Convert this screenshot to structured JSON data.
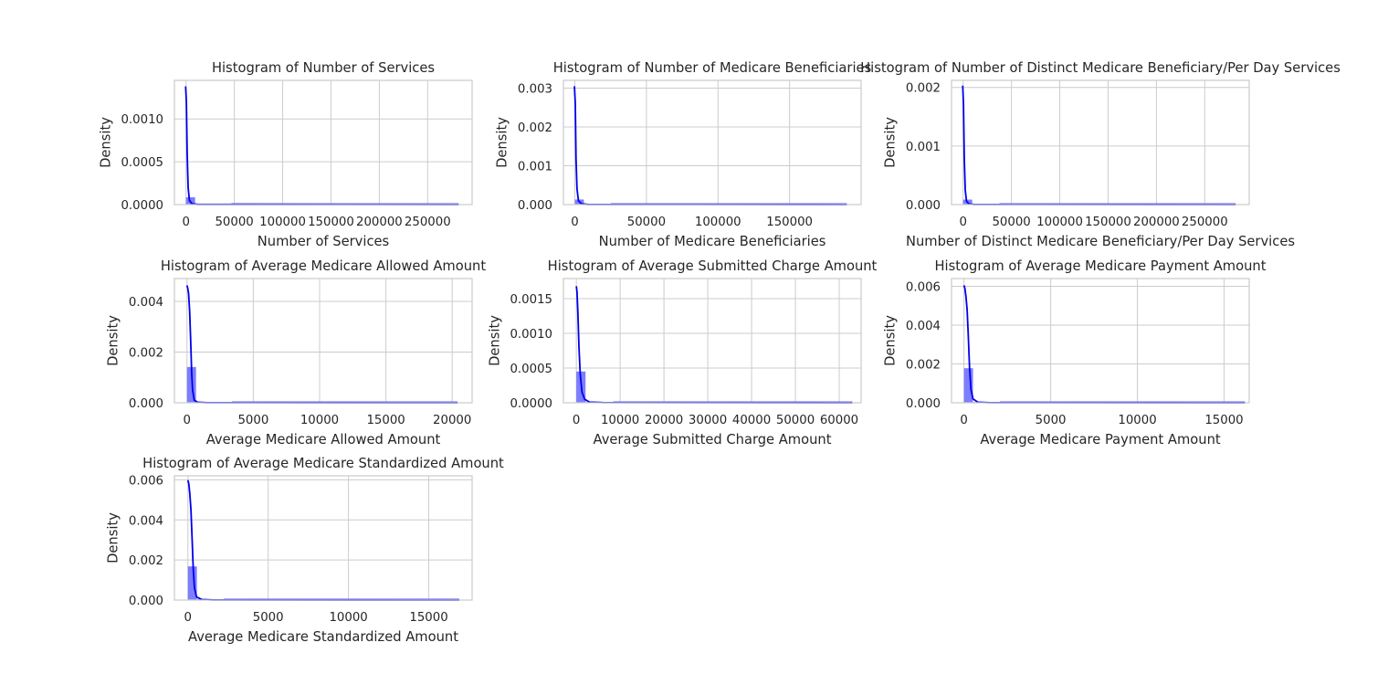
{
  "chart_data": [
    {
      "type": "bar",
      "title": "Histogram of Number of Services",
      "xlabel": "Number of Services",
      "ylabel": "Density",
      "xlim": [
        -12000,
        296000
      ],
      "ylim": [
        0,
        0.00145
      ],
      "xticks": [
        0,
        50000,
        100000,
        150000,
        200000,
        250000
      ],
      "xtick_labels": [
        "0",
        "50000",
        "100000",
        "150000",
        "200000",
        "250000"
      ],
      "yticks": [
        0,
        0.0005,
        0.001
      ],
      "ytick_labels": [
        "0.0000",
        "0.0005",
        "0.0010"
      ],
      "bin_width": 9400,
      "bins": [
        {
          "x0": 0,
          "density": 8.5e-05
        },
        {
          "x0": 9400,
          "density": 2.5e-06
        },
        {
          "x0": 18800,
          "density": 1.2e-06
        },
        {
          "x0": 28200,
          "density": 6e-07
        },
        {
          "x0": 37600,
          "density": 4e-07
        }
      ],
      "tail_end": 282000,
      "kde": [
        [
          -400,
          0.00138
        ],
        [
          400,
          0.0012
        ],
        [
          1200,
          0.0006
        ],
        [
          2200,
          0.0002
        ],
        [
          3500,
          5e-05
        ],
        [
          6000,
          1e-05
        ],
        [
          12000,
          2e-06
        ],
        [
          282000,
          3e-07
        ]
      ]
    },
    {
      "type": "bar",
      "title": "Histogram of Number of Medicare Beneficiaries",
      "xlabel": "Number of Medicare Beneficiaries",
      "ylabel": "Density",
      "xlim": [
        -8000,
        200000
      ],
      "ylim": [
        0,
        0.0032
      ],
      "xticks": [
        0,
        50000,
        100000,
        150000
      ],
      "xtick_labels": [
        "0",
        "50000",
        "100000",
        "150000"
      ],
      "yticks": [
        0,
        0.001,
        0.002,
        0.003
      ],
      "ytick_labels": [
        "0.000",
        "0.001",
        "0.002",
        "0.003"
      ],
      "bin_width": 6300,
      "bins": [
        {
          "x0": 0,
          "density": 0.00013
        },
        {
          "x0": 6300,
          "density": 4e-06
        },
        {
          "x0": 12600,
          "density": 2e-06
        },
        {
          "x0": 18900,
          "density": 1e-06
        }
      ],
      "tail_end": 190000,
      "kde": [
        [
          -300,
          0.00305
        ],
        [
          300,
          0.0026
        ],
        [
          800,
          0.0012
        ],
        [
          1500,
          0.0004
        ],
        [
          2500,
          0.0001
        ],
        [
          4500,
          2e-05
        ],
        [
          9000,
          4e-06
        ],
        [
          190000,
          5e-07
        ]
      ]
    },
    {
      "type": "bar",
      "title": "Histogram of Number of Distinct Medicare Beneficiary/Per Day Services",
      "xlabel": "Number of Distinct Medicare Beneficiary/Per Day Services",
      "ylabel": "Density",
      "xlim": [
        -12000,
        296000
      ],
      "ylim": [
        0,
        0.00212
      ],
      "xticks": [
        0,
        50000,
        100000,
        150000,
        200000,
        250000
      ],
      "xtick_labels": [
        "0",
        "50000",
        "100000",
        "150000",
        "200000",
        "250000"
      ],
      "yticks": [
        0,
        0.001,
        0.002
      ],
      "ytick_labels": [
        "0.000",
        "0.001",
        "0.002"
      ],
      "bin_width": 9400,
      "bins": [
        {
          "x0": 0,
          "density": 8.5e-05
        },
        {
          "x0": 9400,
          "density": 2.5e-06
        },
        {
          "x0": 18800,
          "density": 1.2e-06
        },
        {
          "x0": 28200,
          "density": 6e-07
        }
      ],
      "tail_end": 282000,
      "kde": [
        [
          -400,
          0.00203
        ],
        [
          400,
          0.0017
        ],
        [
          1200,
          0.0008
        ],
        [
          2200,
          0.00025
        ],
        [
          3500,
          6e-05
        ],
        [
          6000,
          1e-05
        ],
        [
          12000,
          2e-06
        ],
        [
          282000,
          3e-07
        ]
      ]
    },
    {
      "type": "bar",
      "title": "Histogram of Average Medicare Allowed Amount",
      "xlabel": "Average Medicare Allowed Amount",
      "ylabel": "Density",
      "xlim": [
        -950,
        21500
      ],
      "ylim": [
        0,
        0.0049
      ],
      "xticks": [
        0,
        5000,
        10000,
        15000,
        20000
      ],
      "xtick_labels": [
        "0",
        "5000",
        "10000",
        "15000",
        "20000"
      ],
      "yticks": [
        0,
        0.002,
        0.004
      ],
      "ytick_labels": [
        "0.000",
        "0.002",
        "0.004"
      ],
      "bin_width": 680,
      "bins": [
        {
          "x0": 0,
          "density": 0.00141
        },
        {
          "x0": 680,
          "density": 3e-05
        },
        {
          "x0": 1360,
          "density": 1e-05
        },
        {
          "x0": 2040,
          "density": 5e-06
        },
        {
          "x0": 2720,
          "density": 3e-06
        }
      ],
      "tail_end": 20400,
      "kde": [
        [
          0,
          0.00463
        ],
        [
          60,
          0.0045
        ],
        [
          120,
          0.0043
        ],
        [
          200,
          0.0036
        ],
        [
          280,
          0.0024
        ],
        [
          350,
          0.0012
        ],
        [
          420,
          0.0005
        ],
        [
          550,
          0.0001
        ],
        [
          800,
          2e-05
        ],
        [
          1500,
          5e-06
        ],
        [
          20400,
          5e-07
        ]
      ]
    },
    {
      "type": "bar",
      "title": "Histogram of Average Submitted Charge Amount",
      "xlabel": "Average Submitted Charge Amount",
      "ylabel": "Density",
      "xlim": [
        -2950,
        65000
      ],
      "ylim": [
        0,
        0.00179
      ],
      "xticks": [
        0,
        10000,
        20000,
        30000,
        40000,
        50000,
        60000
      ],
      "xtick_labels": [
        "0",
        "10000",
        "20000",
        "30000",
        "40000",
        "50000",
        "60000"
      ],
      "yticks": [
        0,
        0.0005,
        0.001,
        0.0015
      ],
      "ytick_labels": [
        "0.0000",
        "0.0005",
        "0.0010",
        "0.0015"
      ],
      "bin_width": 2100,
      "bins": [
        {
          "x0": 0,
          "density": 0.00045
        },
        {
          "x0": 2100,
          "density": 1e-05
        },
        {
          "x0": 4200,
          "density": 4e-06
        },
        {
          "x0": 6300,
          "density": 2e-06
        }
      ],
      "tail_end": 63000,
      "kde": [
        [
          0,
          0.00168
        ],
        [
          150,
          0.0016
        ],
        [
          350,
          0.0013
        ],
        [
          600,
          0.0008
        ],
        [
          900,
          0.0004
        ],
        [
          1300,
          0.00015
        ],
        [
          1900,
          5e-05
        ],
        [
          3000,
          1e-05
        ],
        [
          6000,
          3e-06
        ],
        [
          63000,
          3e-07
        ]
      ]
    },
    {
      "type": "bar",
      "title": "Histogram of Average Medicare Payment Amount",
      "xlabel": "Average Medicare Payment Amount",
      "ylabel": "Density",
      "xlim": [
        -720,
        16450
      ],
      "ylim": [
        0,
        0.0064
      ],
      "xticks": [
        0,
        5000,
        10000,
        15000
      ],
      "xtick_labels": [
        "0",
        "5000",
        "10000",
        "15000"
      ],
      "yticks": [
        0,
        0.002,
        0.004,
        0.006
      ],
      "ytick_labels": [
        "0.000",
        "0.002",
        "0.004",
        "0.006"
      ],
      "bin_width": 520,
      "bins": [
        {
          "x0": 0,
          "density": 0.00178
        },
        {
          "x0": 520,
          "density": 4e-05
        },
        {
          "x0": 1040,
          "density": 1e-05
        },
        {
          "x0": 1560,
          "density": 5e-06
        }
      ],
      "tail_end": 16200,
      "kde": [
        [
          0,
          0.00605
        ],
        [
          50,
          0.0059
        ],
        [
          110,
          0.0055
        ],
        [
          180,
          0.0048
        ],
        [
          250,
          0.0034
        ],
        [
          320,
          0.0018
        ],
        [
          400,
          0.0007
        ],
        [
          520,
          0.0002
        ],
        [
          800,
          3e-05
        ],
        [
          1500,
          6e-06
        ],
        [
          16200,
          6e-07
        ]
      ]
    },
    {
      "type": "bar",
      "title": "Histogram of Average Medicare Standardized Amount",
      "xlabel": "Average Medicare Standardized Amount",
      "ylabel": "Density",
      "xlim": [
        -840,
        17700
      ],
      "ylim": [
        0,
        0.0062
      ],
      "xticks": [
        0,
        5000,
        10000,
        15000
      ],
      "xtick_labels": [
        "0",
        "5000",
        "10000",
        "15000"
      ],
      "yticks": [
        0,
        0.002,
        0.004,
        0.006
      ],
      "ytick_labels": [
        "0.000",
        "0.002",
        "0.004",
        "0.006"
      ],
      "bin_width": 560,
      "bins": [
        {
          "x0": 0,
          "density": 0.00168
        },
        {
          "x0": 560,
          "density": 4e-05
        },
        {
          "x0": 1120,
          "density": 1e-05
        },
        {
          "x0": 1680,
          "density": 5e-06
        }
      ],
      "tail_end": 16900,
      "kde": [
        [
          0,
          0.00598
        ],
        [
          55,
          0.0058
        ],
        [
          120,
          0.0053
        ],
        [
          190,
          0.0045
        ],
        [
          260,
          0.0031
        ],
        [
          330,
          0.0016
        ],
        [
          410,
          0.0006
        ],
        [
          540,
          0.00015
        ],
        [
          850,
          3e-05
        ],
        [
          1600,
          6e-06
        ],
        [
          16900,
          6e-07
        ]
      ]
    }
  ],
  "colors": {
    "bar": "#6666ff",
    "kde": "#0000ee",
    "grid": "#cccccc",
    "text": "#262626"
  }
}
